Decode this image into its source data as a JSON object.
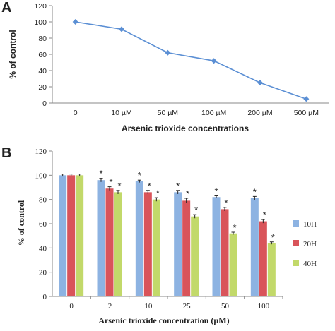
{
  "chart_data": [
    {
      "panel": "A",
      "type": "line",
      "categories": [
        "0",
        "10 µM",
        "50 µM",
        "100 µM",
        "200 µM",
        "500 µM"
      ],
      "values": [
        100,
        91,
        62,
        52,
        25,
        5
      ],
      "xlabel": "Arsenic trioxide concentrations",
      "ylabel": "% of control",
      "ylim": [
        0,
        120
      ],
      "yticks": [
        "0",
        "20",
        "40",
        "60",
        "80",
        "100",
        "120"
      ],
      "grid": false,
      "color": "#5b8fd4"
    },
    {
      "panel": "B",
      "type": "bar",
      "categories": [
        "0",
        "2",
        "10",
        "25",
        "50",
        "100"
      ],
      "series": [
        {
          "name": "10H",
          "values": [
            100,
            96,
            95,
            86,
            82,
            81
          ],
          "errors": [
            1,
            1.5,
            1,
            1.5,
            1,
            1.5
          ],
          "color": "#8db3e2"
        },
        {
          "name": "20H",
          "values": [
            100,
            89,
            86,
            79,
            72,
            62
          ],
          "errors": [
            1,
            1.5,
            1.5,
            2,
            1.5,
            1.5
          ],
          "color": "#d9545a"
        },
        {
          "name": "40H",
          "values": [
            100,
            86,
            80,
            66,
            52,
            44
          ],
          "errors": [
            1,
            1.5,
            1.5,
            1.5,
            1,
            1
          ],
          "color": "#c2d96a"
        }
      ],
      "significance_marker": "*",
      "significance": [
        [
          false,
          true,
          true,
          true,
          true,
          true
        ],
        [
          false,
          true,
          true,
          true,
          true,
          true
        ],
        [
          false,
          true,
          true,
          true,
          true,
          true
        ]
      ],
      "xlabel": "Arsenic trioxide concentration (µM)",
      "ylabel": "% of control",
      "ylim": [
        0,
        120
      ],
      "yticks": [
        "0",
        "20",
        "40",
        "60",
        "80",
        "100",
        "120"
      ],
      "legend_position": "right"
    }
  ],
  "panelA": {
    "letter": "A"
  },
  "panelB": {
    "letter": "B"
  }
}
